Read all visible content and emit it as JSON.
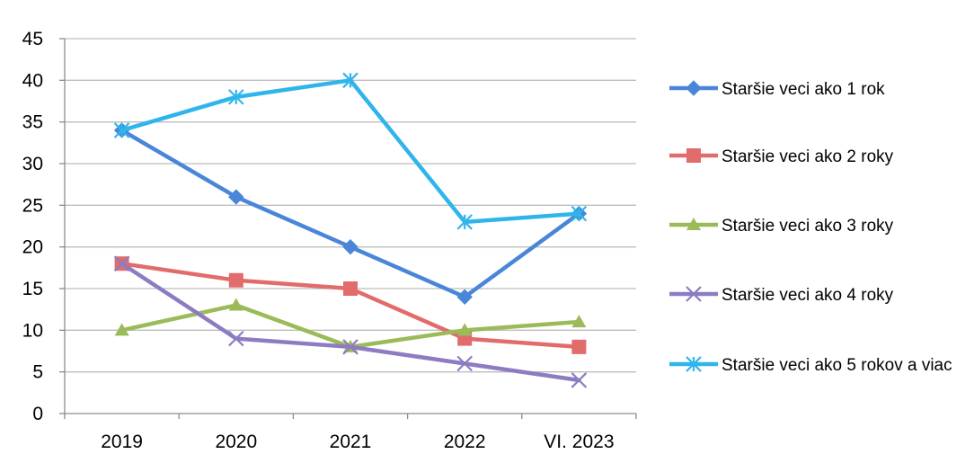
{
  "chart_data": {
    "type": "line",
    "title": "",
    "xlabel": "",
    "ylabel": "",
    "categories": [
      "2019",
      "2020",
      "2021",
      "2022",
      "VI. 2023"
    ],
    "ylim": [
      0,
      45
    ],
    "yticks": [
      0,
      5,
      10,
      15,
      20,
      25,
      30,
      35,
      40,
      45
    ],
    "grid": true,
    "legend_position": "right",
    "series": [
      {
        "name": "Staršie veci ako 1 rok",
        "values": [
          34,
          26,
          20,
          14,
          24
        ],
        "color": "#4A86D8",
        "marker": "diamond"
      },
      {
        "name": "Staršie veci ako 2 roky",
        "values": [
          18,
          16,
          15,
          9,
          8
        ],
        "color": "#E26B6B",
        "marker": "square"
      },
      {
        "name": "Staršie veci ako 3 roky",
        "values": [
          10,
          13,
          8,
          10,
          11
        ],
        "color": "#9BBB59",
        "marker": "triangle"
      },
      {
        "name": "Staršie veci ako 4 roky",
        "values": [
          18,
          9,
          8,
          6,
          4
        ],
        "color": "#8E7CC3",
        "marker": "x"
      },
      {
        "name": "Staršie veci ako 5 rokov a viac",
        "values": [
          34,
          38,
          40,
          23,
          24
        ],
        "color": "#2FB5EC",
        "marker": "star"
      }
    ]
  }
}
